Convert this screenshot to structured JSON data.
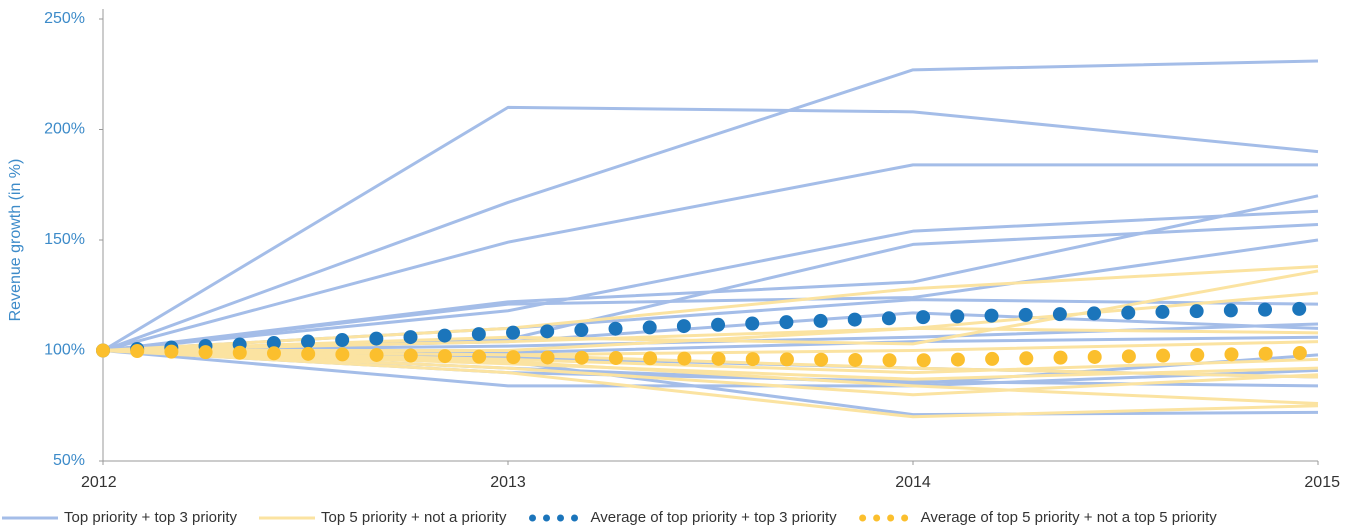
{
  "chart_data": {
    "type": "line",
    "y_label": "Revenue growth (in %)",
    "x": [
      2012,
      2013,
      2014,
      2015
    ],
    "xlim": [
      2012,
      2015
    ],
    "xticks": [
      2012,
      2013,
      2014,
      2015
    ],
    "ylim": [
      50,
      250
    ],
    "yticks": [
      {
        "value": 50,
        "label": "50%"
      },
      {
        "value": 100,
        "label": "100%"
      },
      {
        "value": 150,
        "label": "150%"
      },
      {
        "value": 200,
        "label": "200%"
      },
      {
        "value": 250,
        "label": "250%"
      }
    ],
    "legend": "bottom",
    "series": [
      {
        "name": "Top priority + top 3 priority",
        "color": "#a4bde8",
        "style": "solid",
        "lines": [
          [
            100,
            210,
            208,
            190
          ],
          [
            100,
            167,
            227,
            231
          ],
          [
            100,
            149,
            184,
            184
          ],
          [
            100,
            118,
            154,
            163
          ],
          [
            100,
            105,
            148,
            157
          ],
          [
            100,
            122,
            131,
            170
          ],
          [
            100,
            121,
            124,
            150
          ],
          [
            100,
            110,
            123,
            121
          ],
          [
            100,
            104,
            117,
            110
          ],
          [
            100,
            102,
            106,
            112
          ],
          [
            100,
            99,
            104,
            106
          ],
          [
            100,
            97,
            92,
            88
          ],
          [
            100,
            90,
            86,
            84
          ],
          [
            100,
            84,
            84,
            91
          ],
          [
            100,
            95,
            71,
            72
          ],
          [
            100,
            92,
            85,
            98
          ]
        ]
      },
      {
        "name": "Top 5 priority + not a priority",
        "color": "#fbe3a1",
        "style": "solid",
        "lines": [
          [
            100,
            110,
            128,
            138
          ],
          [
            100,
            106,
            103,
            136
          ],
          [
            100,
            104,
            110,
            126
          ],
          [
            100,
            100,
            110,
            108
          ],
          [
            100,
            98,
            100,
            104
          ],
          [
            100,
            96,
            90,
            96
          ],
          [
            100,
            94,
            87,
            92
          ],
          [
            100,
            92,
            80,
            89
          ],
          [
            100,
            90,
            70,
            75
          ],
          [
            100,
            95,
            84,
            76
          ],
          [
            100,
            98,
            92,
            88
          ]
        ]
      },
      {
        "name": "Average of top priority + top 3 priority",
        "color": "#1b75bb",
        "style": "dotted",
        "values": [
          100,
          108,
          115,
          119
        ]
      },
      {
        "name": "Average of top 5 priority + not a top 5 priority",
        "color": "#fbbf2d",
        "style": "dotted",
        "values": [
          100,
          97,
          95.5,
          99
        ]
      }
    ]
  }
}
